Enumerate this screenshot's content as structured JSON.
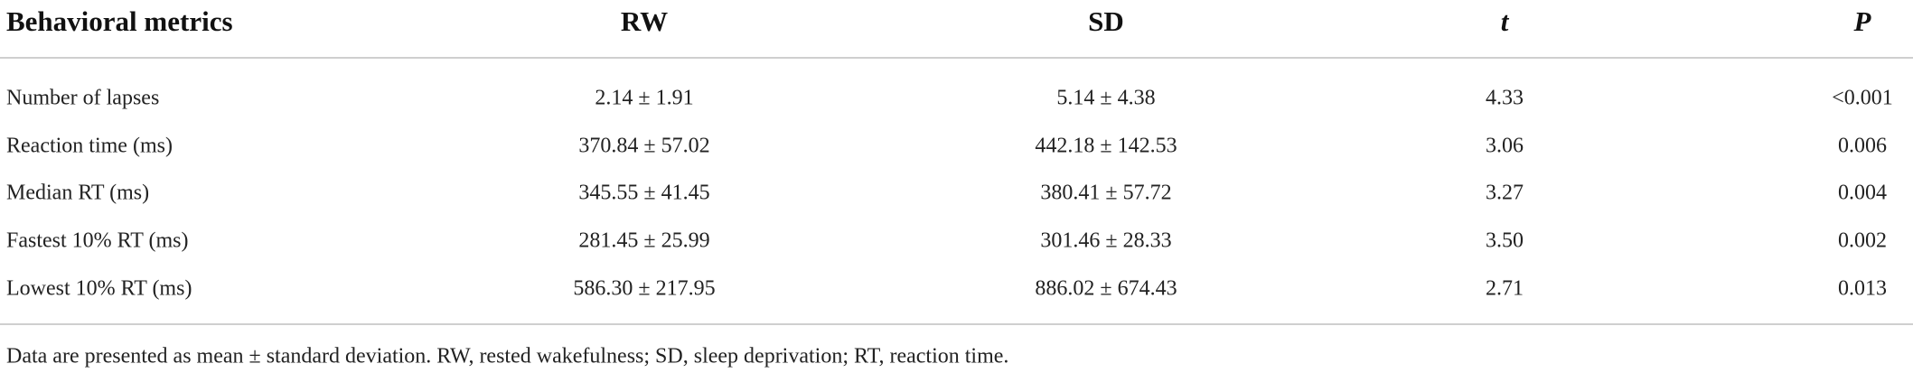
{
  "table": {
    "header": [
      "Behavioral metrics",
      "RW",
      "SD",
      "t",
      "P"
    ],
    "rows": [
      [
        "Number of lapses",
        "2.14 ± 1.91",
        "5.14 ± 4.38",
        "4.33",
        "<0.001"
      ],
      [
        "Reaction time (ms)",
        "370.84 ± 57.02",
        "442.18 ± 142.53",
        "3.06",
        "0.006"
      ],
      [
        "Median RT (ms)",
        "345.55 ± 41.45",
        "380.41 ± 57.72",
        "3.27",
        "0.004"
      ],
      [
        "Fastest 10% RT (ms)",
        "281.45 ± 25.99",
        "301.46 ± 28.33",
        "3.50",
        "0.002"
      ],
      [
        "Lowest 10% RT (ms)",
        "586.30 ± 217.95",
        "886.02 ± 674.43",
        "2.71",
        "0.013"
      ]
    ]
  },
  "footnote": "Data are presented as mean ± standard deviation. RW, rested wakefulness; SD, sleep deprivation; RT, reaction time."
}
